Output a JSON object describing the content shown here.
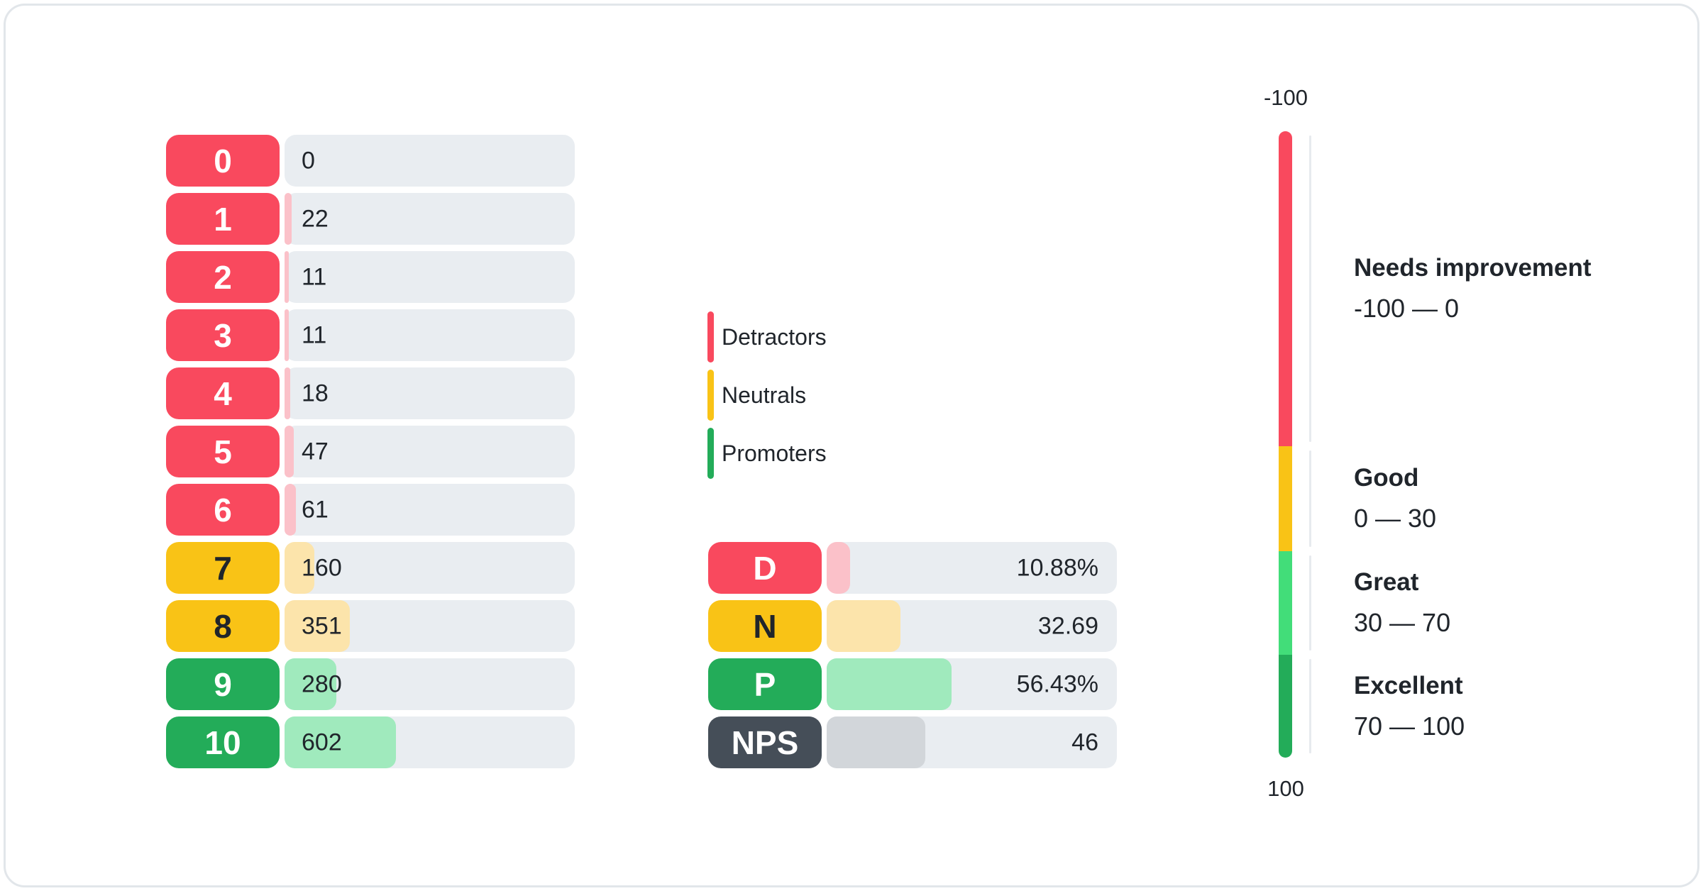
{
  "colors": {
    "red": "#F9495E",
    "red-light": "#FBC1C9",
    "yellow": "#F9C316",
    "yellow-light": "#FCE4AB",
    "green": "#23AC59",
    "green-light": "#42DD79",
    "green-fill": "#A0EABD",
    "slate": "#454E58",
    "gray-fill": "#D2D6DA",
    "track": "#E9EDF1",
    "ink": "#20252B",
    "separator": "#E7EAEE",
    "card-border": "#E2E6EA",
    "card-bg": "#FFFFFF"
  },
  "score_chart": {
    "rows": [
      {
        "label": "0",
        "value": "0",
        "category": "detractor",
        "bar_pct": 0
      },
      {
        "label": "1",
        "value": "22",
        "category": "detractor",
        "bar_pct": 2.4
      },
      {
        "label": "2",
        "value": "11",
        "category": "detractor",
        "bar_pct": 1.5
      },
      {
        "label": "3",
        "value": "11",
        "category": "detractor",
        "bar_pct": 1.5
      },
      {
        "label": "4",
        "value": "18",
        "category": "detractor",
        "bar_pct": 2.0
      },
      {
        "label": "5",
        "value": "47",
        "category": "detractor",
        "bar_pct": 3.2
      },
      {
        "label": "6",
        "value": "61",
        "category": "detractor",
        "bar_pct": 3.9
      },
      {
        "label": "7",
        "value": "160",
        "category": "neutral",
        "bar_pct": 10.2
      },
      {
        "label": "8",
        "value": "351",
        "category": "neutral",
        "bar_pct": 22.5
      },
      {
        "label": "9",
        "value": "280",
        "category": "promoter",
        "bar_pct": 17.9
      },
      {
        "label": "10",
        "value": "602",
        "category": "promoter",
        "bar_pct": 38.5
      }
    ]
  },
  "legend": {
    "items": [
      {
        "label": "Detractors",
        "color": "#F9495E"
      },
      {
        "label": "Neutrals",
        "color": "#F9C316"
      },
      {
        "label": "Promoters",
        "color": "#23AC59"
      }
    ]
  },
  "summary": {
    "rows": [
      {
        "label": "D",
        "value": "10.88%",
        "category": "detractor",
        "bar_pct": 8.1
      },
      {
        "label": "N",
        "value": "32.69",
        "category": "neutral",
        "bar_pct": 25.5
      },
      {
        "label": "P",
        "value": "56.43%",
        "category": "promoter",
        "bar_pct": 43.0
      },
      {
        "label": "NPS",
        "value": "46",
        "category": "nps",
        "bar_pct": 34.0
      }
    ]
  },
  "gauge": {
    "top_label": "-100",
    "bottom_label": "100",
    "zones": [
      {
        "title": "Needs improvement",
        "range": "-100 — 0",
        "color": "#F9495E",
        "height_pct": 50.3
      },
      {
        "title": "Good",
        "range": "0 — 30",
        "color": "#F9C316",
        "height_pct": 16.7
      },
      {
        "title": "Great",
        "range": "30 — 70",
        "color": "#42DD79",
        "height_pct": 16.6
      },
      {
        "title": "Excellent",
        "range": "70 — 100",
        "color": "#23AC59",
        "height_pct": 16.4
      }
    ]
  },
  "chart_data": [
    {
      "type": "bar",
      "title": "NPS score distribution (responses per score)",
      "orientation": "horizontal",
      "categories": [
        "0",
        "1",
        "2",
        "3",
        "4",
        "5",
        "6",
        "7",
        "8",
        "9",
        "10"
      ],
      "values": [
        0,
        22,
        11,
        11,
        18,
        47,
        61,
        160,
        351,
        280,
        602
      ],
      "series_groups": {
        "detractors": [
          "0",
          "1",
          "2",
          "3",
          "4",
          "5",
          "6"
        ],
        "neutrals": [
          "7",
          "8"
        ],
        "promoters": [
          "9",
          "10"
        ]
      },
      "legend_position": "right",
      "legend": [
        "Detractors",
        "Neutrals",
        "Promoters"
      ]
    },
    {
      "type": "bar",
      "title": "NPS summary",
      "orientation": "horizontal",
      "categories": [
        "D",
        "N",
        "P",
        "NPS"
      ],
      "values": [
        10.88,
        32.69,
        56.43,
        46
      ],
      "value_labels": [
        "10.88%",
        "32.69",
        "56.43%",
        "46"
      ]
    },
    {
      "type": "gauge",
      "title": "NPS scale",
      "min": -100,
      "max": 100,
      "zones": [
        {
          "label": "Needs improvement",
          "from": -100,
          "to": 0
        },
        {
          "label": "Good",
          "from": 0,
          "to": 30
        },
        {
          "label": "Great",
          "from": 30,
          "to": 70
        },
        {
          "label": "Excellent",
          "from": 70,
          "to": 100
        }
      ]
    }
  ]
}
